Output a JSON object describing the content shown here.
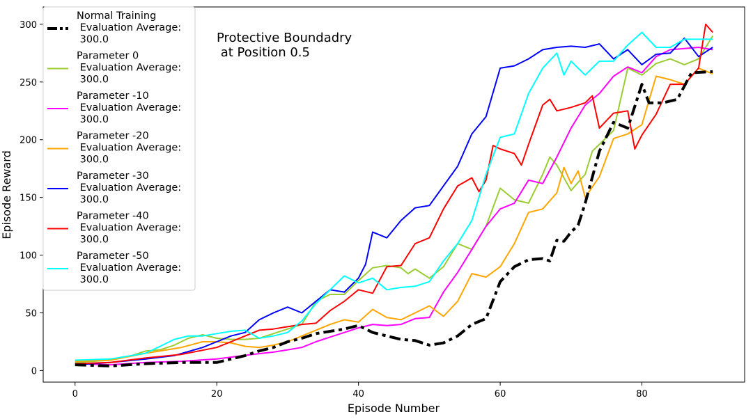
{
  "chart_data": {
    "type": "line",
    "xlabel": "Episode Number",
    "ylabel": "Episode Reward",
    "annotation": [
      "Protective Boundadry",
      " at Position 0.5"
    ],
    "xlim": [
      -4.5,
      94.5
    ],
    "ylim": [
      -10,
      315
    ],
    "xticks": [
      0,
      20,
      40,
      60,
      80
    ],
    "yticks": [
      0,
      50,
      100,
      150,
      200,
      250,
      300
    ],
    "legend_position": "upper-left",
    "series": [
      {
        "name": "Normal Training",
        "legend_lines": [
          "Normal Training",
          " Evaluation Average:",
          " 300.0"
        ],
        "color": "#000000",
        "dash": "dashdot",
        "width": 4,
        "points": [
          [
            0,
            5
          ],
          [
            5,
            4
          ],
          [
            10,
            6
          ],
          [
            15,
            7
          ],
          [
            20,
            7
          ],
          [
            22,
            10
          ],
          [
            24,
            13
          ],
          [
            26,
            17
          ],
          [
            28,
            20
          ],
          [
            30,
            25
          ],
          [
            32,
            28
          ],
          [
            34,
            32
          ],
          [
            36,
            34
          ],
          [
            38,
            36
          ],
          [
            40,
            39
          ],
          [
            42,
            33
          ],
          [
            44,
            30
          ],
          [
            46,
            27
          ],
          [
            48,
            26
          ],
          [
            50,
            22
          ],
          [
            52,
            24
          ],
          [
            54,
            30
          ],
          [
            56,
            40
          ],
          [
            58,
            45
          ],
          [
            60,
            77
          ],
          [
            62,
            90
          ],
          [
            64,
            96
          ],
          [
            66,
            97
          ],
          [
            67,
            95
          ],
          [
            68,
            113
          ],
          [
            69,
            112
          ],
          [
            70,
            120
          ],
          [
            71,
            126
          ],
          [
            72,
            145
          ],
          [
            74,
            190
          ],
          [
            76,
            215
          ],
          [
            78,
            210
          ],
          [
            80,
            248
          ],
          [
            81,
            232
          ],
          [
            83,
            232
          ],
          [
            85,
            235
          ],
          [
            87,
            258
          ],
          [
            90,
            259
          ]
        ]
      },
      {
        "name": "Parameter 0",
        "legend_lines": [
          "Parameter 0",
          " Evaluation Average:",
          " 300.0"
        ],
        "color": "#9acd32",
        "dash": "solid",
        "width": 2,
        "points": [
          [
            0,
            7
          ],
          [
            5,
            9
          ],
          [
            8,
            13
          ],
          [
            10,
            17
          ],
          [
            12,
            18
          ],
          [
            14,
            22
          ],
          [
            16,
            28
          ],
          [
            18,
            31
          ],
          [
            20,
            28
          ],
          [
            22,
            27
          ],
          [
            24,
            27
          ],
          [
            26,
            28
          ],
          [
            28,
            32
          ],
          [
            30,
            36
          ],
          [
            32,
            40
          ],
          [
            34,
            60
          ],
          [
            36,
            66
          ],
          [
            38,
            66
          ],
          [
            40,
            78
          ],
          [
            42,
            89
          ],
          [
            44,
            91
          ],
          [
            46,
            89
          ],
          [
            47,
            84
          ],
          [
            48,
            88
          ],
          [
            50,
            80
          ],
          [
            52,
            90
          ],
          [
            54,
            110
          ],
          [
            56,
            105
          ],
          [
            58,
            125
          ],
          [
            60,
            158
          ],
          [
            62,
            148
          ],
          [
            64,
            145
          ],
          [
            66,
            170
          ],
          [
            67,
            185
          ],
          [
            68,
            178
          ],
          [
            70,
            156
          ],
          [
            72,
            170
          ],
          [
            73,
            190
          ],
          [
            74,
            196
          ],
          [
            76,
            208
          ],
          [
            78,
            262
          ],
          [
            80,
            256
          ],
          [
            82,
            266
          ],
          [
            84,
            270
          ],
          [
            86,
            265
          ],
          [
            88,
            270
          ],
          [
            90,
            290
          ]
        ]
      },
      {
        "name": "Parameter -10",
        "legend_lines": [
          "Parameter -10",
          " Evaluation Average:",
          " 300.0"
        ],
        "color": "#ff00ff",
        "dash": "solid",
        "width": 2,
        "points": [
          [
            0,
            6
          ],
          [
            5,
            5
          ],
          [
            10,
            7
          ],
          [
            15,
            8
          ],
          [
            20,
            10
          ],
          [
            25,
            14
          ],
          [
            28,
            16
          ],
          [
            30,
            18
          ],
          [
            32,
            20
          ],
          [
            34,
            25
          ],
          [
            36,
            29
          ],
          [
            38,
            33
          ],
          [
            40,
            37
          ],
          [
            42,
            40
          ],
          [
            44,
            39
          ],
          [
            46,
            40
          ],
          [
            48,
            45
          ],
          [
            50,
            46
          ],
          [
            52,
            68
          ],
          [
            54,
            85
          ],
          [
            56,
            105
          ],
          [
            58,
            125
          ],
          [
            60,
            140
          ],
          [
            62,
            145
          ],
          [
            64,
            165
          ],
          [
            66,
            162
          ],
          [
            68,
            185
          ],
          [
            70,
            210
          ],
          [
            72,
            230
          ],
          [
            74,
            240
          ],
          [
            76,
            255
          ],
          [
            78,
            263
          ],
          [
            80,
            258
          ],
          [
            82,
            272
          ],
          [
            84,
            278
          ],
          [
            86,
            279
          ],
          [
            88,
            280
          ],
          [
            90,
            278
          ]
        ]
      },
      {
        "name": "Parameter -20",
        "legend_lines": [
          "Parameter -20",
          " Evaluation Average:",
          " 300.0"
        ],
        "color": "#ffa500",
        "dash": "solid",
        "width": 2,
        "points": [
          [
            0,
            8
          ],
          [
            5,
            9
          ],
          [
            10,
            15
          ],
          [
            15,
            20
          ],
          [
            18,
            25
          ],
          [
            20,
            25
          ],
          [
            22,
            24
          ],
          [
            24,
            21
          ],
          [
            26,
            20
          ],
          [
            28,
            22
          ],
          [
            30,
            25
          ],
          [
            32,
            30
          ],
          [
            34,
            35
          ],
          [
            36,
            40
          ],
          [
            38,
            44
          ],
          [
            40,
            42
          ],
          [
            42,
            53
          ],
          [
            44,
            46
          ],
          [
            46,
            44
          ],
          [
            48,
            50
          ],
          [
            50,
            56
          ],
          [
            52,
            47
          ],
          [
            54,
            60
          ],
          [
            56,
            84
          ],
          [
            58,
            81
          ],
          [
            60,
            90
          ],
          [
            62,
            110
          ],
          [
            64,
            137
          ],
          [
            66,
            140
          ],
          [
            68,
            154
          ],
          [
            69,
            176
          ],
          [
            70,
            162
          ],
          [
            71,
            173
          ],
          [
            72,
            150
          ],
          [
            74,
            168
          ],
          [
            76,
            201
          ],
          [
            78,
            205
          ],
          [
            80,
            213
          ],
          [
            82,
            255
          ],
          [
            84,
            252
          ],
          [
            86,
            248
          ],
          [
            88,
            262
          ],
          [
            90,
            257
          ]
        ]
      },
      {
        "name": "Parameter -30",
        "legend_lines": [
          "Parameter -30",
          " Evaluation Average:",
          " 300.0"
        ],
        "color": "#0000ff",
        "dash": "solid",
        "width": 2,
        "points": [
          [
            0,
            5
          ],
          [
            5,
            7
          ],
          [
            10,
            10
          ],
          [
            14,
            13
          ],
          [
            18,
            20
          ],
          [
            20,
            25
          ],
          [
            22,
            30
          ],
          [
            24,
            33
          ],
          [
            26,
            44
          ],
          [
            28,
            50
          ],
          [
            30,
            55
          ],
          [
            32,
            50
          ],
          [
            34,
            60
          ],
          [
            36,
            70
          ],
          [
            38,
            68
          ],
          [
            40,
            80
          ],
          [
            41,
            92
          ],
          [
            42,
            120
          ],
          [
            44,
            115
          ],
          [
            46,
            130
          ],
          [
            48,
            141
          ],
          [
            50,
            143
          ],
          [
            52,
            160
          ],
          [
            54,
            177
          ],
          [
            56,
            205
          ],
          [
            58,
            220
          ],
          [
            60,
            262
          ],
          [
            62,
            264
          ],
          [
            64,
            270
          ],
          [
            66,
            278
          ],
          [
            68,
            280
          ],
          [
            70,
            281
          ],
          [
            72,
            280
          ],
          [
            74,
            283
          ],
          [
            76,
            270
          ],
          [
            78,
            278
          ],
          [
            80,
            265
          ],
          [
            82,
            274
          ],
          [
            84,
            275
          ],
          [
            86,
            288
          ],
          [
            88,
            272
          ],
          [
            90,
            280
          ]
        ]
      },
      {
        "name": "Parameter -40",
        "legend_lines": [
          "Parameter -40",
          " Evaluation Average:",
          " 300.0"
        ],
        "color": "#ff0000",
        "dash": "solid",
        "width": 2,
        "points": [
          [
            0,
            6
          ],
          [
            5,
            7
          ],
          [
            10,
            11
          ],
          [
            15,
            14
          ],
          [
            20,
            20
          ],
          [
            22,
            25
          ],
          [
            24,
            30
          ],
          [
            26,
            35
          ],
          [
            28,
            36
          ],
          [
            30,
            38
          ],
          [
            32,
            40
          ],
          [
            34,
            41
          ],
          [
            36,
            52
          ],
          [
            38,
            60
          ],
          [
            40,
            70
          ],
          [
            42,
            67
          ],
          [
            44,
            90
          ],
          [
            46,
            91
          ],
          [
            48,
            110
          ],
          [
            50,
            115
          ],
          [
            52,
            140
          ],
          [
            54,
            160
          ],
          [
            56,
            167
          ],
          [
            57,
            155
          ],
          [
            58,
            165
          ],
          [
            59,
            195
          ],
          [
            60,
            192
          ],
          [
            62,
            188
          ],
          [
            63,
            178
          ],
          [
            64,
            196
          ],
          [
            66,
            230
          ],
          [
            67,
            235
          ],
          [
            68,
            225
          ],
          [
            70,
            228
          ],
          [
            72,
            232
          ],
          [
            73,
            238
          ],
          [
            74,
            210
          ],
          [
            76,
            223
          ],
          [
            78,
            225
          ],
          [
            79,
            192
          ],
          [
            80,
            204
          ],
          [
            82,
            222
          ],
          [
            84,
            248
          ],
          [
            86,
            248
          ],
          [
            88,
            262
          ],
          [
            89,
            300
          ],
          [
            90,
            293
          ]
        ]
      },
      {
        "name": "Parameter -50",
        "legend_lines": [
          "Parameter -50",
          " Evaluation Average:",
          " 300.0"
        ],
        "color": "#00ffff",
        "dash": "solid",
        "width": 2,
        "points": [
          [
            0,
            9
          ],
          [
            5,
            10
          ],
          [
            10,
            15
          ],
          [
            14,
            27
          ],
          [
            16,
            30
          ],
          [
            18,
            30
          ],
          [
            20,
            32
          ],
          [
            22,
            34
          ],
          [
            24,
            35
          ],
          [
            26,
            28
          ],
          [
            28,
            30
          ],
          [
            30,
            33
          ],
          [
            32,
            43
          ],
          [
            34,
            58
          ],
          [
            36,
            70
          ],
          [
            38,
            82
          ],
          [
            40,
            76
          ],
          [
            42,
            80
          ],
          [
            44,
            70
          ],
          [
            46,
            72
          ],
          [
            48,
            73
          ],
          [
            50,
            77
          ],
          [
            52,
            95
          ],
          [
            54,
            110
          ],
          [
            56,
            130
          ],
          [
            58,
            170
          ],
          [
            60,
            202
          ],
          [
            62,
            205
          ],
          [
            64,
            240
          ],
          [
            66,
            262
          ],
          [
            68,
            275
          ],
          [
            69,
            256
          ],
          [
            70,
            268
          ],
          [
            72,
            256
          ],
          [
            74,
            268
          ],
          [
            76,
            268
          ],
          [
            78,
            282
          ],
          [
            80,
            293
          ],
          [
            82,
            280
          ],
          [
            84,
            280
          ],
          [
            86,
            287
          ],
          [
            88,
            287
          ],
          [
            90,
            287
          ]
        ]
      }
    ]
  }
}
